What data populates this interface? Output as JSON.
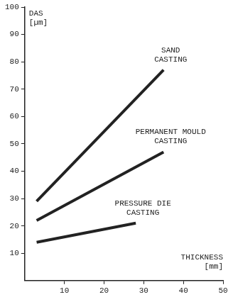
{
  "chart_data": {
    "type": "line",
    "x_label": "THICKNESS [mm]",
    "y_label": "DAS [µm]",
    "xlim": [
      0,
      50
    ],
    "xticks": [
      10,
      20,
      30,
      40,
      50
    ],
    "ylim": [
      0,
      100
    ],
    "yticks": [
      10,
      20,
      30,
      40,
      50,
      60,
      70,
      80,
      90,
      100
    ],
    "grid": false,
    "series": [
      {
        "name": "SAND CASTING",
        "color": "#222222",
        "x": [
          3,
          35
        ],
        "values": [
          29,
          77
        ]
      },
      {
        "name": "PERMANENT MOULD CASTING",
        "color": "#222222",
        "x": [
          3,
          35
        ],
        "values": [
          22,
          47
        ]
      },
      {
        "name": "PRESSURE DIE CASTING",
        "color": "#222222",
        "x": [
          3,
          28
        ],
        "values": [
          14,
          21
        ]
      }
    ]
  }
}
